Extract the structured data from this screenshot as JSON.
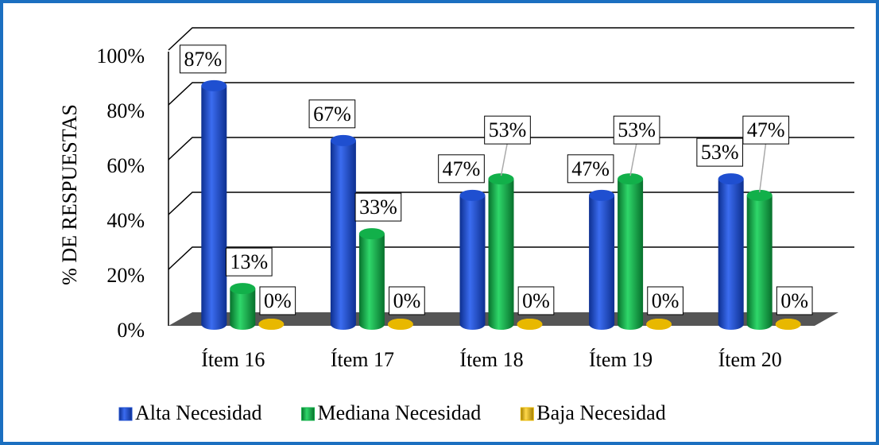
{
  "chart_data": {
    "type": "bar3d",
    "y_label": "% DE RESPUESTAS",
    "categories": [
      "Ítem 16",
      "Ítem 17",
      "Ítem 18",
      "Ítem 19",
      "Ítem 20"
    ],
    "series": [
      {
        "name": "Alta Necesidad",
        "color": "#1f4fd0",
        "values": [
          87,
          67,
          47,
          47,
          53
        ],
        "value_labels": [
          "87%",
          "67%",
          "47%",
          "47%",
          "53%"
        ]
      },
      {
        "name": "Mediana Necesidad",
        "color": "#12b04a",
        "values": [
          13,
          33,
          53,
          53,
          47
        ],
        "value_labels": [
          "13%",
          "33%",
          "53%",
          "53%",
          "47%"
        ]
      },
      {
        "name": "Baja Necesidad",
        "color": "#e8b800",
        "values": [
          0,
          0,
          0,
          0,
          0
        ],
        "value_labels": [
          "0%",
          "0%",
          "0%",
          "0%",
          "0%"
        ]
      }
    ],
    "ylim": [
      0,
      100
    ],
    "yticks": [
      {
        "value": 0,
        "label": "0%"
      },
      {
        "value": 20,
        "label": "20%"
      },
      {
        "value": 40,
        "label": "40%"
      },
      {
        "value": 60,
        "label": "60%"
      },
      {
        "value": 80,
        "label": "80%"
      },
      {
        "value": 100,
        "label": "100%"
      }
    ],
    "grid": true,
    "legend": "bottom"
  }
}
